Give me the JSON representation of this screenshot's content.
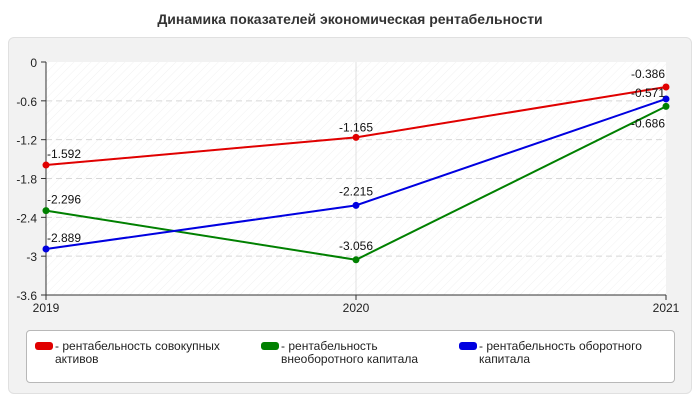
{
  "chart_data": {
    "type": "line",
    "title": "Динамика показателей экономическая рентабельности",
    "x": [
      "2019",
      "2020",
      "2021"
    ],
    "ylim": [
      -3.6,
      0
    ],
    "yticks": [
      "0",
      "-0.6",
      "-1.2",
      "-1.8",
      "-2.4",
      "-3",
      "-3.6"
    ],
    "ytick_values": [
      0,
      -0.6,
      -1.2,
      -1.8,
      -2.4,
      -3,
      -3.6
    ],
    "grid": true,
    "legend_position": "bottom",
    "series": [
      {
        "name": "рентабельность совокупных активов",
        "color": "#e00000",
        "values": [
          -1.592,
          -1.165,
          -0.386
        ],
        "labels": [
          "-1.592",
          "-1.165",
          "-0.386"
        ]
      },
      {
        "name": "рентабельность внеоборотного капитала",
        "color": "#008000",
        "values": [
          -2.296,
          -3.056,
          -0.686
        ],
        "labels": [
          "-2.296",
          "-3.056",
          "-0.686"
        ]
      },
      {
        "name": "рентабельность оборотного капитала",
        "color": "#0000e0",
        "values": [
          -2.889,
          -2.215,
          -0.571
        ],
        "labels": [
          "-2.889",
          "-2.215",
          "-0.571"
        ]
      }
    ]
  }
}
